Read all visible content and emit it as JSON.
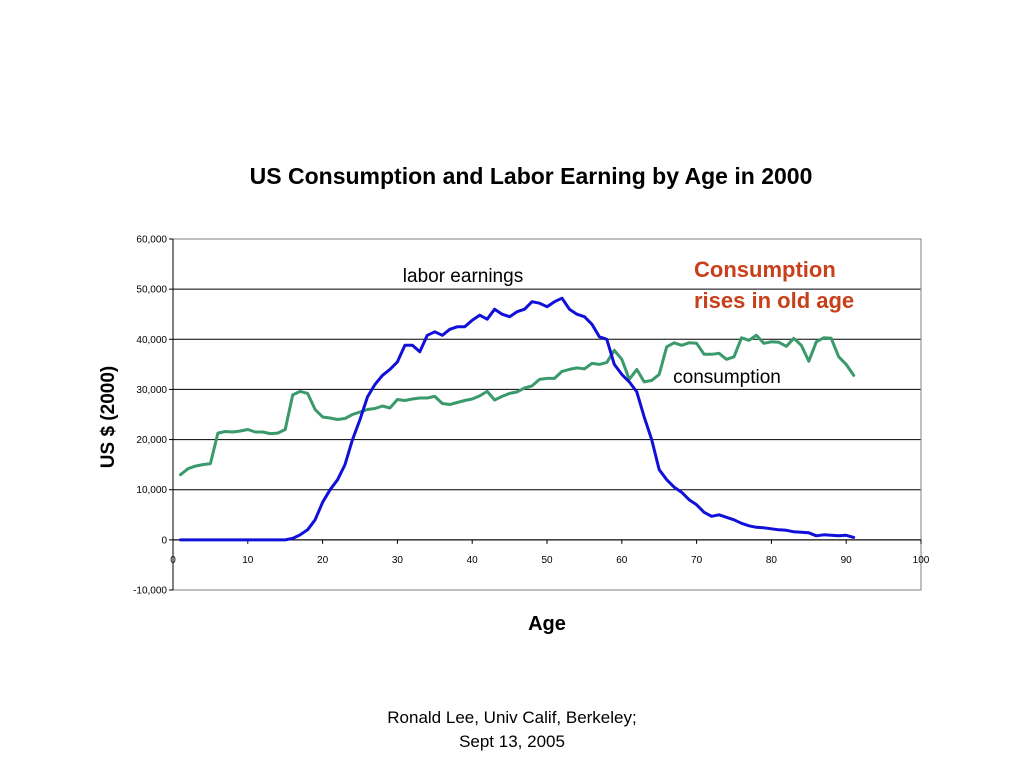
{
  "chart_data": {
    "type": "line",
    "title": "US Consumption and Labor Earning by Age in 2000",
    "xlabel": "Age",
    "ylabel": "US $ (2000)",
    "xlim": [
      0,
      100
    ],
    "ylim": [
      -10000,
      60000
    ],
    "x_ticks": [
      0,
      10,
      20,
      30,
      40,
      50,
      60,
      70,
      80,
      90,
      100
    ],
    "y_ticks": [
      -10000,
      0,
      10000,
      20000,
      30000,
      40000,
      50000,
      60000
    ],
    "y_tick_labels": [
      "-10,000",
      "0",
      "10,000",
      "20,000",
      "30,000",
      "40,000",
      "50,000",
      "60,000"
    ],
    "grid": "horizontal",
    "series": [
      {
        "name": "labor earnings",
        "color": "#1010d8",
        "x": [
          1,
          2,
          3,
          4,
          5,
          6,
          7,
          8,
          9,
          10,
          11,
          12,
          13,
          14,
          15,
          16,
          17,
          18,
          19,
          20,
          21,
          22,
          23,
          24,
          25,
          26,
          27,
          28,
          29,
          30,
          31,
          32,
          33,
          34,
          35,
          36,
          37,
          38,
          39,
          40,
          41,
          42,
          43,
          44,
          45,
          46,
          47,
          48,
          49,
          50,
          51,
          52,
          53,
          54,
          55,
          56,
          57,
          58,
          59,
          60,
          61,
          62,
          63,
          64,
          65,
          66,
          67,
          68,
          69,
          70,
          71,
          72,
          73,
          74,
          75,
          76,
          77,
          78,
          79,
          80,
          81,
          82,
          83,
          84,
          85,
          86,
          87,
          88,
          89,
          90,
          91
        ],
        "y": [
          0,
          0,
          0,
          0,
          0,
          0,
          0,
          0,
          0,
          0,
          0,
          0,
          0,
          0,
          0,
          300,
          1000,
          2000,
          4000,
          7500,
          10000,
          12000,
          15000,
          20000,
          24000,
          28500,
          31000,
          32800,
          34000,
          35500,
          38800,
          38800,
          37500,
          40800,
          41500,
          40800,
          42000,
          42500,
          42500,
          43800,
          44800,
          44000,
          46000,
          45000,
          44500,
          45500,
          46000,
          47500,
          47200,
          46500,
          47500,
          48200,
          46000,
          45000,
          44500,
          43000,
          40500,
          40000,
          35000,
          33000,
          31500,
          29500,
          24500,
          20000,
          14000,
          12000,
          10500,
          9500,
          8000,
          7000,
          5500,
          4700,
          5000,
          4500,
          4000,
          3300,
          2800,
          2500,
          2400,
          2200,
          2000,
          1900,
          1600,
          1500,
          1400,
          800,
          1000,
          900,
          800,
          900,
          500
        ]
      },
      {
        "name": "consumption",
        "color": "#3a9a6b",
        "x": [
          1,
          2,
          3,
          4,
          5,
          6,
          7,
          8,
          9,
          10,
          11,
          12,
          13,
          14,
          15,
          16,
          17,
          18,
          19,
          20,
          21,
          22,
          23,
          24,
          25,
          26,
          27,
          28,
          29,
          30,
          31,
          32,
          33,
          34,
          35,
          36,
          37,
          38,
          39,
          40,
          41,
          42,
          43,
          44,
          45,
          46,
          47,
          48,
          49,
          50,
          51,
          52,
          53,
          54,
          55,
          56,
          57,
          58,
          59,
          60,
          61,
          62,
          63,
          64,
          65,
          66,
          67,
          68,
          69,
          70,
          71,
          72,
          73,
          74,
          75,
          76,
          77,
          78,
          79,
          80,
          81,
          82,
          83,
          84,
          85,
          86,
          87,
          88,
          89,
          90,
          91
        ],
        "y": [
          13000,
          14200,
          14700,
          15000,
          15200,
          21300,
          21600,
          21500,
          21700,
          22000,
          21500,
          21500,
          21200,
          21300,
          22000,
          28900,
          29600,
          29200,
          26000,
          24500,
          24300,
          24000,
          24200,
          25000,
          25500,
          26000,
          26200,
          26700,
          26300,
          28000,
          27800,
          28100,
          28300,
          28300,
          28600,
          27200,
          27000,
          27400,
          27800,
          28100,
          28700,
          29600,
          27900,
          28600,
          29200,
          29500,
          30300,
          30700,
          32000,
          32200,
          32200,
          33600,
          34000,
          34300,
          34100,
          35200,
          35000,
          35400,
          37800,
          36000,
          32000,
          34000,
          31500,
          31800,
          33000,
          38500,
          39300,
          38800,
          39300,
          39200,
          37000,
          37000,
          37200,
          36000,
          36500,
          40300,
          39800,
          40800,
          39200,
          39500,
          39400,
          38600,
          40200,
          38800,
          35600,
          39500,
          40300,
          40200,
          36500,
          35000,
          32800
        ]
      }
    ],
    "series_labels": {
      "labor": "labor earnings",
      "consumption": "consumption"
    },
    "annotation": {
      "line1": "Consumption",
      "line2": "rises in old age",
      "color": "#c8401a"
    }
  },
  "footer": {
    "line1": "Ronald Lee, Univ Calif, Berkeley;",
    "line2": "Sept 13, 2005"
  }
}
